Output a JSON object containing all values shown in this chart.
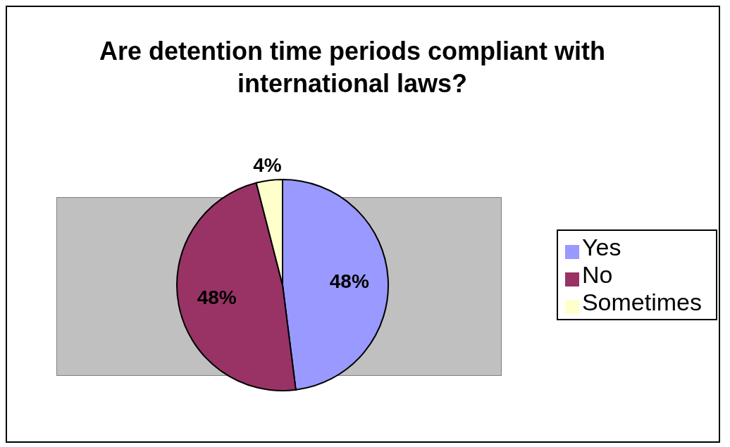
{
  "chart_data": {
    "type": "pie",
    "title": "Are detention time periods compliant with international laws?",
    "categories": [
      "Yes",
      "No",
      "Sometimes"
    ],
    "values": [
      48,
      48,
      4
    ],
    "colors": [
      "#9999ff",
      "#993366",
      "#ffffcc"
    ],
    "value_labels": [
      "48%",
      "48%",
      "4%"
    ],
    "legend": "right"
  }
}
